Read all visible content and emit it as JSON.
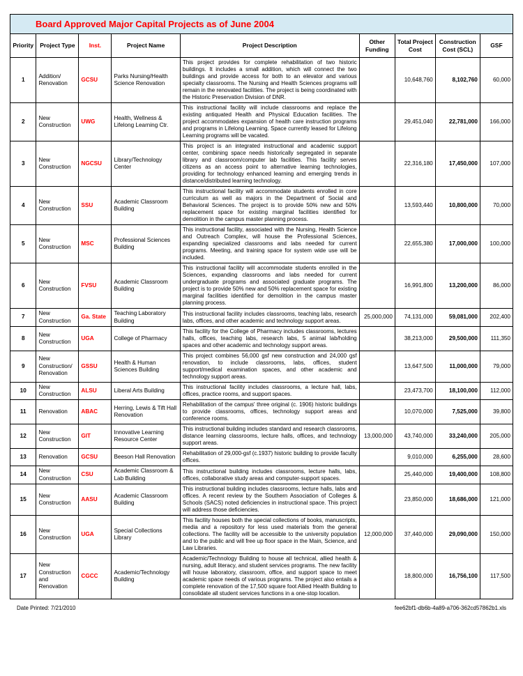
{
  "title": "Board Approved Major Capital Projects as of June 2004",
  "headers": {
    "priority": "Priority",
    "project_type": "Project Type",
    "inst": "Inst.",
    "project_name": "Project Name",
    "description": "Project  Description",
    "other_funding": "Other Funding",
    "total_cost": "Total Project Cost",
    "construction_cost": "Construction Cost (SCL)",
    "gsf": "GSF"
  },
  "rows": [
    {
      "priority": "1",
      "type": "Addition/ Renovation",
      "inst": "GCSU",
      "name": "Parks Nursing/Health Science Renovation",
      "desc": "This project provides for complete rehabilitation of two historic buildings.  It includes a small addition, which will connect the two buildings and provide access for both to an elevator and various specialty classrooms.  The Nursing and Health Sciences programs will remain in the renovated facilities.  The project is being coordinated with the Historic Preservation Division of DNR.",
      "other": "",
      "total": "10,648,760",
      "const": "8,102,760",
      "gsf": "60,000"
    },
    {
      "priority": "2",
      "type": "New Construction",
      "inst": "UWG",
      "name": "Health, Wellness & Lifelong Learning Ctr.",
      "desc": "This instructional facility will include classrooms and replace the existing antiquated Health and Physical Education facilities.  The project accommodates expansion of health care instruction programs and programs in Lifelong Learning.  Space currently leased for Lifelong Learning programs will be vacated.",
      "other": "",
      "total": "29,451,040",
      "const": "22,781,000",
      "gsf": "166,000"
    },
    {
      "priority": "3",
      "type": "New Construction",
      "inst": "NGCSU",
      "name": "Library/Technology Center",
      "desc": "This project is an integrated instructional and academic support center, combining space needs historically segregated in separate library and classroom/computer lab facilities.  This facility serves citizens as an access point to alternative learning technologies, providing for technology enhanced learning and emerging trends in distance/distributed learning technology.",
      "other": "",
      "total": "22,316,180",
      "const": "17,450,000",
      "gsf": "107,000"
    },
    {
      "priority": "4",
      "type": "New Construction",
      "inst": "SSU",
      "name": "Academic Classroom Building",
      "desc": "This instructional facility will accommodate students enrolled in core curriculum as well as majors in the Department of Social and Behavioral Sciences.  The project is to provide 50% new and 50% replacement space for existing marginal facilities identified for demolition in the campus master planning process.",
      "other": "",
      "total": "13,593,440",
      "const": "10,800,000",
      "gsf": "70,000"
    },
    {
      "priority": "5",
      "type": "New Construction",
      "inst": "MSC",
      "name": "Professional Sciences Building",
      "desc": "This instructional facility, associated with the Nursing, Health Science and Outreach Complex, will house the Professional Sciences, expanding specialized classrooms and labs needed for current programs.  Meeting, and training space for system wide use will be included.",
      "other": "",
      "total": "22,655,380",
      "const": "17,000,000",
      "gsf": "100,000"
    },
    {
      "priority": "6",
      "type": "New Construction",
      "inst": "FVSU",
      "name": "Academic Classroom Building",
      "desc": "This instructional facility will accommodate students enrolled in the Sciences, expanding classrooms and labs needed for current undergraduate programs and associated graduate programs.  The project is to provide 50% new and 50% replacement space for existing marginal facilities identified for demolition in the campus master planning process.",
      "other": "",
      "total": "16,991,800",
      "const": "13,200,000",
      "gsf": "86,000"
    },
    {
      "priority": "7",
      "type": "New Construction",
      "inst": "Ga. State",
      "name": "Teaching Laboratory Building",
      "desc": "This instructional facility includes classrooms, teaching labs, research labs, offices, and other academic and technology support areas.",
      "other": "25,000,000",
      "total": "74,131,000",
      "const": "59,081,000",
      "gsf": "202,400"
    },
    {
      "priority": "8",
      "type": "New Construction",
      "inst": "UGA",
      "name": "College of Pharmacy",
      "desc": "This facility for the College of Pharmacy includes classrooms, lectures halls, offices, teaching labs, research labs, 5 animal lab/holding spaces and other academic and technology support areas.",
      "other": "",
      "total": "38,213,000",
      "const": "29,500,000",
      "gsf": "111,350"
    },
    {
      "priority": "9",
      "type": "New Construction/ Renovation",
      "inst": "GSSU",
      "name": "Health & Human Sciences Building",
      "desc": "This project combines 56,000 gsf new construction and 24,000 gsf renovation, to include classrooms, labs, offices, student support/medical examination spaces, and other academic and technology support areas.",
      "other": "",
      "total": "13,647,500",
      "const": "11,000,000",
      "gsf": "79,000"
    },
    {
      "priority": "10",
      "type": "New Construction",
      "inst": "ALSU",
      "name": "Liberal Arts Building",
      "desc": "This instructional facility includes classrooms, a lecture hall, labs, offices, practice rooms, and support spaces.",
      "other": "",
      "total": "23,473,700",
      "const": "18,100,000",
      "gsf": "112,000"
    },
    {
      "priority": "11",
      "type": "Renovation",
      "inst": "ABAC",
      "name": "Herring, Lewis & Tift Hall Renovation",
      "desc": "Rehabilitation of the campus' three original (c. 1906) historic buildings to provide classrooms, offices, technology support areas and conference rooms.",
      "other": "",
      "total": "10,070,000",
      "const": "7,525,000",
      "gsf": "39,800"
    },
    {
      "priority": "12",
      "type": "New Construction",
      "inst": "GIT",
      "name": "Innovative Learning Resource Center",
      "desc": "This instructional building includes standard and research classrooms, distance learning classrooms, lecture halls, offices, and technology support areas.",
      "other": "13,000,000",
      "total": "43,740,000",
      "const": "33,240,000",
      "gsf": "205,000"
    },
    {
      "priority": "13",
      "type": "Renovation",
      "inst": "GCSU",
      "name": "Beeson Hall Renovation",
      "desc": "Rehabilitation of 29,000-gsf (c.1937) historic building to provide faculty offices.",
      "other": "",
      "total": "9,010,000",
      "const": "6,255,000",
      "gsf": "28,600"
    },
    {
      "priority": "14",
      "type": "New Construction",
      "inst": "CSU",
      "name": "Academic Classroom & Lab Building",
      "desc": "This instructional building includes classrooms, lecture halls, labs, offices, collaborative study areas and computer-support spaces.",
      "other": "",
      "total": "25,440,000",
      "const": "19,400,000",
      "gsf": "108,800"
    },
    {
      "priority": "15",
      "type": "New Construction",
      "inst": "AASU",
      "name": "Academic Classroom Building",
      "desc": "This instructional building includes classrooms, lecture halls, labs and offices.  A recent review by the Southern Association of Colleges & Schools (SACS) noted deficiencies in instructional space.  This project will address those deficiencies.",
      "other": "",
      "total": "23,850,000",
      "const": "18,686,000",
      "gsf": "121,000"
    },
    {
      "priority": "16",
      "type": "New Construction",
      "inst": "UGA",
      "name": "Special Collections Library",
      "desc": "This facility houses both the special collections of books, manuscripts, media and a repository for less used materials from the general collections.  The facility will be accessible to the university population and to the public and will free up floor space in the Main, Science, and Law Libraries.",
      "other": "12,000,000",
      "total": "37,440,000",
      "const": "29,090,000",
      "gsf": "150,000"
    },
    {
      "priority": "17",
      "type": "New Construction  and Renovation",
      "inst": "CGCC",
      "name": "Academic/Technology Building",
      "desc": "Academic/Technology Building  to house all technical, allied health & nursing, adult literacy, and student services programs. The new facility will house laboratory, classroom, office, and support space to meet academic space needs of various programs.  The project also entails a complete renovation of the 17,500 square foot Allied Health Building to consolidate all student services functions in a one-stop location.",
      "other": "",
      "total": "18,800,000",
      "const": "16,756,100",
      "gsf": "117,500"
    }
  ],
  "footer": {
    "date_printed": "Date Printed: 7/21/2010",
    "file": "fee62bf1-db6b-4a89-a706-362cd57862b1.xls"
  }
}
